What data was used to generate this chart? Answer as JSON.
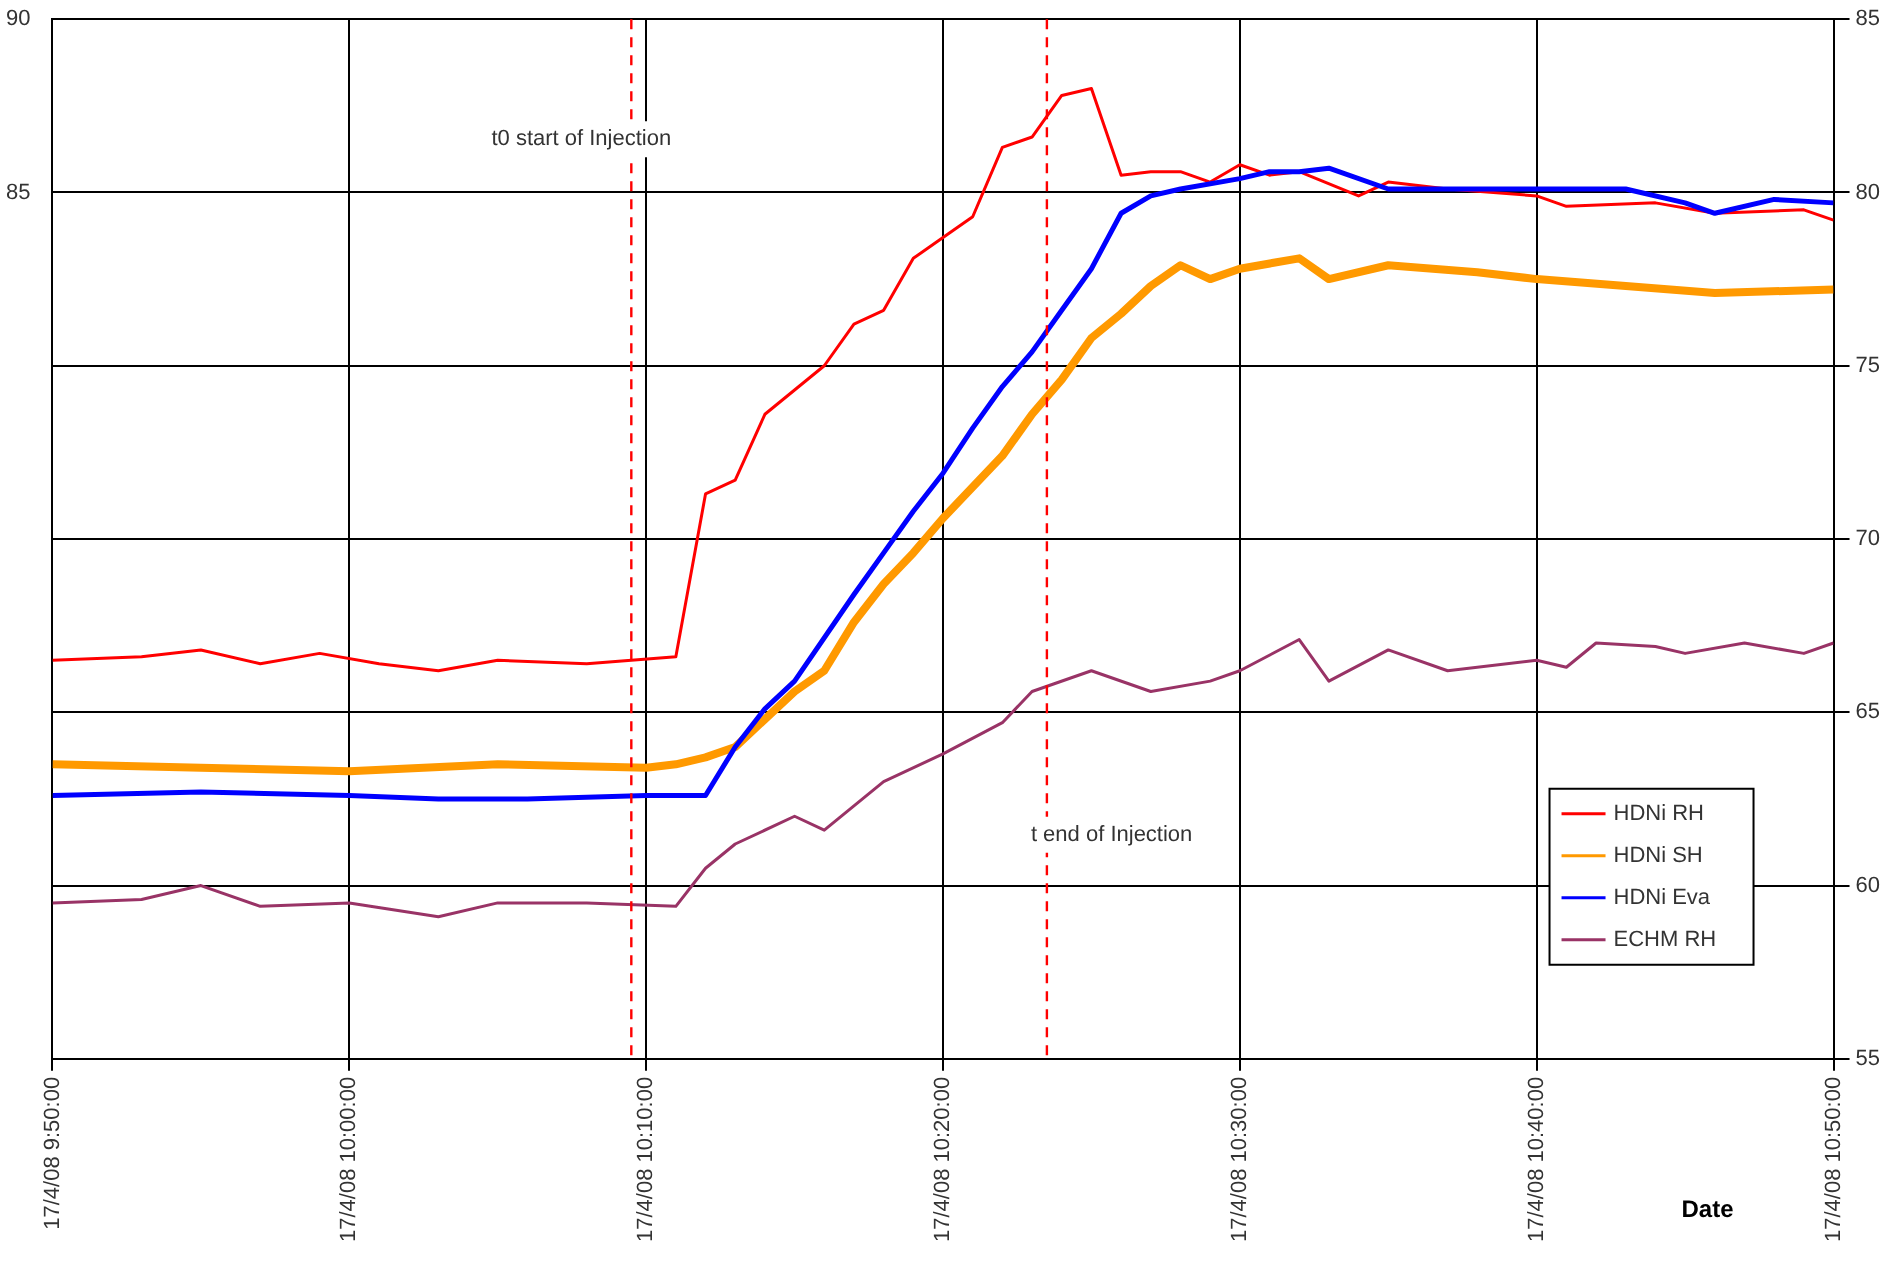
{
  "chart_data": {
    "type": "line",
    "xlabel": "Date",
    "xlim": [
      "--04-17T09:50",
      "--04-17T10:50"
    ],
    "xticks": [
      {
        "value": "--04-17T09:50",
        "label": "17/4/08 9:50:00"
      },
      {
        "value": "--04-17T10:00",
        "label": "17/4/08 10:00:00"
      },
      {
        "value": "--04-17T10:10",
        "label": "17/4/08 10:10:00"
      },
      {
        "value": "--04-17T10:20",
        "label": "17/4/08 10:20:00"
      },
      {
        "value": "--04-17T10:30",
        "label": "17/4/08 10:30:00"
      },
      {
        "value": "--04-17T10:40",
        "label": "17/4/08 10:40:00"
      },
      {
        "value": "--04-17T10:50",
        "label": "17/4/08 10:50:00"
      }
    ],
    "ylim": [
      60,
      90
    ],
    "yticks": [
      85,
      90
    ],
    "y2lim": [
      55,
      85
    ],
    "y2ticks": [
      55,
      60,
      65,
      70,
      75,
      80,
      85
    ],
    "grid": true,
    "legend": "bottom right",
    "marker": "none",
    "line_style": "solid",
    "ref_lines": [
      {
        "axis": "x",
        "value": "--04-17T10:09:30",
        "label": "t0 start of Injection",
        "color": "#ff0000",
        "line_style": "dashed"
      },
      {
        "axis": "x",
        "value": "--04-17T10:23:30",
        "label": "t end of Injection",
        "color": "#ff0000",
        "line_style": "dashed"
      }
    ],
    "series": [
      {
        "name": "HDNi RH",
        "color": "#ff0000",
        "axis": "y2",
        "x": [
          "--04-17T09:50",
          "--04-17T09:53",
          "--04-17T09:55",
          "--04-17T09:57",
          "--04-17T09:59",
          "--04-17T10:01",
          "--04-17T10:03",
          "--04-17T10:05",
          "--04-17T10:08",
          "--04-17T10:11",
          "--04-17T10:12",
          "--04-17T10:13",
          "--04-17T10:14",
          "--04-17T10:15",
          "--04-17T10:16",
          "--04-17T10:17",
          "--04-17T10:18",
          "--04-17T10:19",
          "--04-17T10:20",
          "--04-17T10:21",
          "--04-17T10:22",
          "--04-17T10:23",
          "--04-17T10:24",
          "--04-17T10:25",
          "--04-17T10:26",
          "--04-17T10:27",
          "--04-17T10:28",
          "--04-17T10:29",
          "--04-17T10:30",
          "--04-17T10:31",
          "--04-17T10:32",
          "--04-17T10:34",
          "--04-17T10:35",
          "--04-17T10:37",
          "--04-17T10:40",
          "--04-17T10:41",
          "--04-17T10:44",
          "--04-17T10:46",
          "--04-17T10:49",
          "--04-17T10:50"
        ],
        "values": [
          66.5,
          66.6,
          66.8,
          66.4,
          66.7,
          66.4,
          66.2,
          66.5,
          66.4,
          66.6,
          71.3,
          71.7,
          73.6,
          74.3,
          75.0,
          76.2,
          76.6,
          78.1,
          78.7,
          79.3,
          81.3,
          81.6,
          82.8,
          83.0,
          80.5,
          80.6,
          80.6,
          80.3,
          80.8,
          80.5,
          80.6,
          79.9,
          80.3,
          80.1,
          79.9,
          79.6,
          79.7,
          79.4,
          79.5,
          79.2
        ]
      },
      {
        "name": "HDNi SH",
        "color": "#ff9900",
        "axis": "y2",
        "x": [
          "--04-17T09:50",
          "--04-17T09:55",
          "--04-17T10:00",
          "--04-17T10:05",
          "--04-17T10:10",
          "--04-17T10:11",
          "--04-17T10:12",
          "--04-17T10:13",
          "--04-17T10:14",
          "--04-17T10:15",
          "--04-17T10:16",
          "--04-17T10:17",
          "--04-17T10:18",
          "--04-17T10:19",
          "--04-17T10:20",
          "--04-17T10:21",
          "--04-17T10:22",
          "--04-17T10:23",
          "--04-17T10:24",
          "--04-17T10:25",
          "--04-17T10:26",
          "--04-17T10:27",
          "--04-17T10:28",
          "--04-17T10:29",
          "--04-17T10:30",
          "--04-17T10:32",
          "--04-17T10:33",
          "--04-17T10:35",
          "--04-17T10:38",
          "--04-17T10:40",
          "--04-17T10:43",
          "--04-17T10:46",
          "--04-17T10:50"
        ],
        "values": [
          63.5,
          63.4,
          63.3,
          63.5,
          63.4,
          63.5,
          63.7,
          64.0,
          64.8,
          65.6,
          66.2,
          67.6,
          68.7,
          69.6,
          70.6,
          71.5,
          72.4,
          73.6,
          74.6,
          75.8,
          76.5,
          77.3,
          77.9,
          77.5,
          77.8,
          78.1,
          77.5,
          77.9,
          77.7,
          77.5,
          77.3,
          77.1,
          77.2
        ]
      },
      {
        "name": "HDNi Eva",
        "color": "#0000ff",
        "axis": "y2",
        "x": [
          "--04-17T09:50",
          "--04-17T09:55",
          "--04-17T10:00",
          "--04-17T10:03",
          "--04-17T10:06",
          "--04-17T10:10",
          "--04-17T10:11",
          "--04-17T10:12",
          "--04-17T10:13",
          "--04-17T10:14",
          "--04-17T10:15",
          "--04-17T10:17",
          "--04-17T10:18",
          "--04-17T10:19",
          "--04-17T10:20",
          "--04-17T10:21",
          "--04-17T10:22",
          "--04-17T10:23",
          "--04-17T10:24",
          "--04-17T10:25",
          "--04-17T10:26",
          "--04-17T10:27",
          "--04-17T10:28",
          "--04-17T10:30",
          "--04-17T10:31",
          "--04-17T10:32",
          "--04-17T10:33",
          "--04-17T10:35",
          "--04-17T10:37",
          "--04-17T10:40",
          "--04-17T10:43",
          "--04-17T10:45",
          "--04-17T10:46",
          "--04-17T10:48",
          "--04-17T10:50"
        ],
        "values": [
          62.6,
          62.7,
          62.6,
          62.5,
          62.5,
          62.6,
          62.6,
          62.6,
          64.0,
          65.1,
          65.9,
          68.4,
          69.6,
          70.8,
          71.9,
          73.2,
          74.4,
          75.4,
          76.6,
          77.8,
          79.4,
          79.9,
          80.1,
          80.4,
          80.6,
          80.6,
          80.7,
          80.1,
          80.1,
          80.1,
          80.1,
          79.7,
          79.4,
          79.8,
          79.7
        ]
      },
      {
        "name": "ECHM RH",
        "color": "#993366",
        "axis": "y2",
        "x": [
          "--04-17T09:50",
          "--04-17T09:53",
          "--04-17T09:55",
          "--04-17T09:57",
          "--04-17T10:00",
          "--04-17T10:03",
          "--04-17T10:05",
          "--04-17T10:08",
          "--04-17T10:11",
          "--04-17T10:12",
          "--04-17T10:13",
          "--04-17T10:15",
          "--04-17T10:16",
          "--04-17T10:18",
          "--04-17T10:20",
          "--04-17T10:22",
          "--04-17T10:23",
          "--04-17T10:25",
          "--04-17T10:27",
          "--04-17T10:29",
          "--04-17T10:30",
          "--04-17T10:32",
          "--04-17T10:33",
          "--04-17T10:35",
          "--04-17T10:37",
          "--04-17T10:40",
          "--04-17T10:41",
          "--04-17T10:42",
          "--04-17T10:44",
          "--04-17T10:45",
          "--04-17T10:47",
          "--04-17T10:49",
          "--04-17T10:50"
        ],
        "values": [
          59.5,
          59.6,
          60.0,
          59.4,
          59.5,
          59.1,
          59.5,
          59.5,
          59.4,
          60.5,
          61.2,
          62.0,
          61.6,
          63.0,
          63.8,
          64.7,
          65.6,
          66.2,
          65.6,
          65.9,
          66.2,
          67.1,
          65.9,
          66.8,
          66.2,
          66.5,
          66.3,
          67.0,
          66.9,
          66.7,
          67.0,
          66.7,
          67.0
        ]
      }
    ]
  }
}
